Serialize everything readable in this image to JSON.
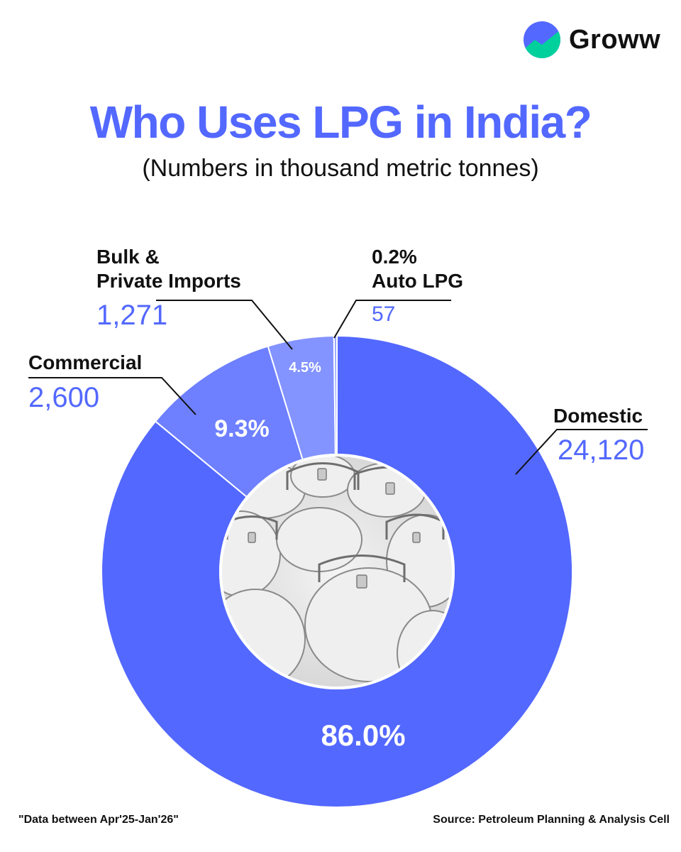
{
  "brand": {
    "name": "Groww",
    "logo_icon": "groww-logo-icon"
  },
  "header": {
    "title": "Who Uses LPG in India?",
    "subtitle": "(Numbers in thousand metric tonnes)"
  },
  "chart_data": {
    "type": "pie",
    "style": "donut",
    "title": "Who Uses LPG in India?",
    "subtitle": "(Numbers in thousand metric tonnes)",
    "unit": "thousand metric tonnes",
    "slices": [
      {
        "name": "Domestic",
        "value": "24,120",
        "amount": 24120,
        "percent": "86.0%",
        "percent_num": 86.0,
        "color": "#5368ff"
      },
      {
        "name": "Commercial",
        "value": "2,600",
        "amount": 2600,
        "percent": "9.3%",
        "percent_num": 9.3,
        "color": "#6e80ff"
      },
      {
        "name": "Bulk & Private Imports",
        "value": "1,271",
        "amount": 1271,
        "percent": "4.5%",
        "percent_num": 4.5,
        "color": "#8393ff"
      },
      {
        "name": "Auto LPG",
        "value": "57",
        "amount": 57,
        "percent": "0.2%",
        "percent_num": 0.2,
        "color": "#9aa7ff"
      }
    ],
    "center_image": "lpg-cylinders-illustration"
  },
  "labels": {
    "bulk_line1": "Bulk &",
    "bulk_line2": "Private Imports",
    "commercial": "Commercial",
    "auto_lpg": "Auto LPG",
    "domestic": "Domestic"
  },
  "footer": {
    "note": "\"Data between Apr'25-Jan'26\"",
    "source": "Source: Petroleum Planning & Analysis Cell"
  }
}
